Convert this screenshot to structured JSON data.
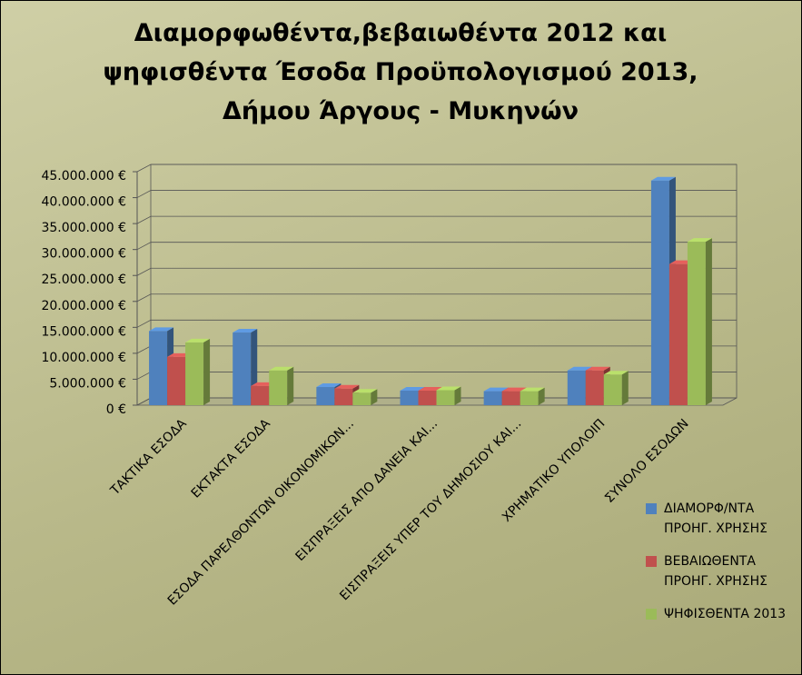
{
  "chart_data": {
    "type": "bar3d",
    "title": "Διαμορφωθέντα,βεβαιωθέντα 2012 και ψηφισθέντα Έσοδα Προϋπολογισμού 2013, Δήμου Άργους - Μυκηνών",
    "categories": [
      "ΤΑΚΤΙΚΑ ΕΣΟΔΑ",
      "ΕΚΤΑΚΤΑ ΕΣΟΔΑ",
      "ΕΣΟΔΑ ΠΑΡΕΛΘΟΝΤΩΝ ΟΙΚΟΝΟΜΙΚΩΝ...",
      "ΕΙΣΠΡΑΞΕΙΣ ΑΠΟ ΔΑΝΕΙΑ ΚΑΙ...",
      "ΕΙΣΠΡΑΞΕΙΣ ΥΠΕΡ ΤΟΥ ΔΗΜΟΣΙΟΥ ΚΑΙ...",
      "ΧΡΗΜΑΤΙΚΟ ΥΠΟΛΟΙΠ",
      "ΣΥΝΟΛΟ ΕΣΟΔΩΝ"
    ],
    "series": [
      {
        "name": "ΔΙΑΜΟΡΦ/ΝΤΑ ΠΡΟΗΓ. ΧΡΗΣΗΣ",
        "color": "#4f81bd",
        "values": [
          14300000,
          14000000,
          3500000,
          2800000,
          2700000,
          6700000,
          43300000
        ]
      },
      {
        "name": "ΒΕΒΑΙΩΘΕΝΤΑ ΠΡΟΗΓ. ΧΡΗΣΗΣ",
        "color": "#c0504d",
        "values": [
          9300000,
          3700000,
          3200000,
          2800000,
          2700000,
          6700000,
          27200000
        ]
      },
      {
        "name": "ΨΗΦΙΣΘΕΝΤΑ 2013",
        "color": "#9bbb59",
        "values": [
          12100000,
          6700000,
          2400000,
          2900000,
          2700000,
          5900000,
          31500000
        ]
      }
    ],
    "ylim": [
      0,
      45000000
    ],
    "yticks": [
      {
        "value": 0,
        "label": "0 €"
      },
      {
        "value": 5000000,
        "label": "5.000.000 €"
      },
      {
        "value": 10000000,
        "label": "10.000.000 €"
      },
      {
        "value": 15000000,
        "label": "15.000.000 €"
      },
      {
        "value": 20000000,
        "label": "20.000.000 €"
      },
      {
        "value": 25000000,
        "label": "25.000.000 €"
      },
      {
        "value": 30000000,
        "label": "30.000.000 €"
      },
      {
        "value": 35000000,
        "label": "35.000.000 €"
      },
      {
        "value": 40000000,
        "label": "40.000.000 €"
      },
      {
        "value": 45000000,
        "label": "45.000.000 €"
      }
    ],
    "grid": true,
    "legend": "right"
  }
}
